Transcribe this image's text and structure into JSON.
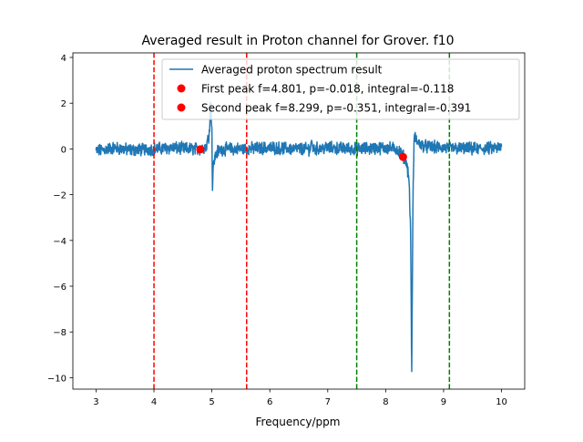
{
  "chart_data": {
    "type": "line",
    "title": "Averaged result in Proton channel for Grover. f10",
    "xlabel": "Frequency/ppm",
    "ylabel": "",
    "xlim": [
      2.6,
      10.4
    ],
    "ylim": [
      -10.5,
      4.2
    ],
    "xticks": [
      3,
      4,
      5,
      6,
      7,
      8,
      9,
      10
    ],
    "yticks": [
      4,
      2,
      0,
      -2,
      -4,
      -6,
      -8,
      -10
    ],
    "xtick_labels": [
      "3",
      "4",
      "5",
      "6",
      "7",
      "8",
      "9",
      "10"
    ],
    "ytick_labels": [
      "4",
      "2",
      "0",
      "−2",
      "−4",
      "−6",
      "−8",
      "−10"
    ],
    "grid": false,
    "legend_position": "top-right",
    "series": [
      {
        "name": "Averaged proton spectrum result",
        "color": "#1f77b4",
        "x": [
          3.0,
          3.3,
          3.6,
          4.0,
          4.3,
          4.6,
          4.8,
          4.9,
          4.95,
          4.98,
          5.0,
          5.01,
          5.02,
          5.04,
          5.07,
          5.1,
          5.2,
          5.5,
          6.0,
          6.5,
          6.7,
          6.71,
          6.75,
          7.0,
          7.5,
          8.0,
          8.2,
          8.3,
          8.35,
          8.4,
          8.43,
          8.45,
          8.47,
          8.49,
          8.5,
          8.52,
          8.55,
          8.6,
          8.7,
          9.0,
          9.5,
          10.0
        ],
        "y": [
          -0.1,
          0.05,
          -0.05,
          0.0,
          0.05,
          0.0,
          0.0,
          0.1,
          0.6,
          2.0,
          0.8,
          -1.8,
          -0.9,
          -0.5,
          -0.25,
          -0.1,
          0.0,
          0.0,
          0.05,
          0.0,
          0.0,
          0.35,
          0.0,
          0.05,
          0.0,
          0.05,
          0.0,
          -0.3,
          -0.5,
          -1.2,
          -3.5,
          -9.8,
          -2.5,
          0.4,
          0.55,
          0.45,
          0.3,
          0.2,
          0.1,
          0.05,
          0.0,
          0.05
        ]
      }
    ],
    "peaks": [
      {
        "label": "First peak f=4.801, p=-0.018, integral=-0.118",
        "x": 4.801,
        "y": -0.018,
        "color": "#ff0000"
      },
      {
        "label": "Second peak f=8.299, p=-0.351, integral=-0.391",
        "x": 8.299,
        "y": -0.351,
        "color": "#ff0000"
      }
    ],
    "vlines": [
      {
        "x": 4.0,
        "color": "#ff0000",
        "style": "dashed"
      },
      {
        "x": 5.6,
        "color": "#ff0000",
        "style": "dashed"
      },
      {
        "x": 7.5,
        "color": "#008000",
        "style": "dashed"
      },
      {
        "x": 9.1,
        "color": "#008000",
        "style": "dashed"
      }
    ]
  }
}
